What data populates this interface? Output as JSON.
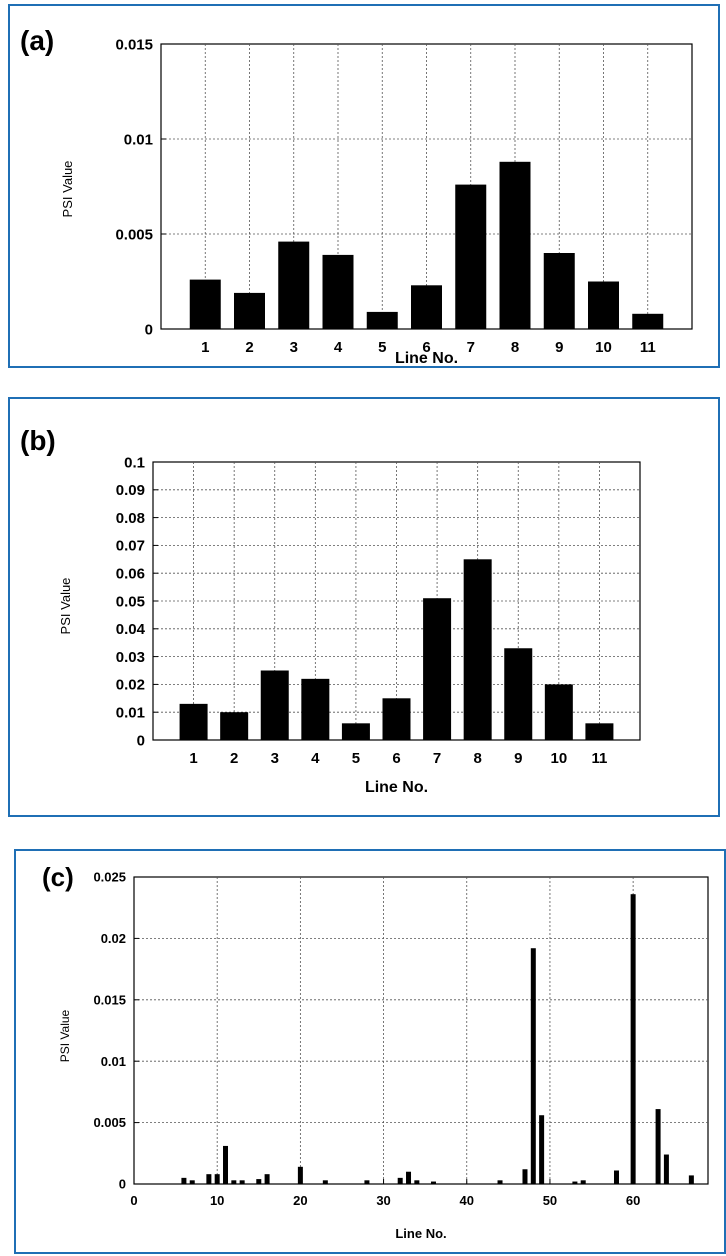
{
  "chart_data": [
    {
      "id": "a",
      "type": "bar",
      "panel_label": "(a)",
      "xlabel": "Line No.",
      "ylabel": "PSI Value",
      "categories": [
        "1",
        "2",
        "3",
        "4",
        "5",
        "6",
        "7",
        "8",
        "9",
        "10",
        "11"
      ],
      "values": [
        0.0026,
        0.0019,
        0.0046,
        0.0039,
        0.0009,
        0.0023,
        0.0076,
        0.0088,
        0.004,
        0.0025,
        0.0008
      ],
      "ylim": [
        0,
        0.015
      ],
      "yticks": [
        "0",
        "0.005",
        "0.01",
        "0.015"
      ],
      "grid": true
    },
    {
      "id": "b",
      "type": "bar",
      "panel_label": "(b)",
      "xlabel": "Line No.",
      "ylabel": "PSI Value",
      "categories": [
        "1",
        "2",
        "3",
        "4",
        "5",
        "6",
        "7",
        "8",
        "9",
        "10",
        "11"
      ],
      "values": [
        0.013,
        0.01,
        0.025,
        0.022,
        0.006,
        0.015,
        0.051,
        0.065,
        0.033,
        0.02,
        0.006
      ],
      "ylim": [
        0,
        0.1
      ],
      "yticks": [
        "0",
        "0.01",
        "0.02",
        "0.03",
        "0.04",
        "0.05",
        "0.06",
        "0.07",
        "0.08",
        "0.09",
        "0.1"
      ],
      "grid": true
    },
    {
      "id": "c",
      "type": "bar",
      "panel_label": "(c)",
      "xlabel": "Line No.",
      "ylabel": "PSI Value",
      "x": [
        6,
        7,
        9,
        10,
        11,
        12,
        13,
        15,
        16,
        20,
        23,
        28,
        32,
        33,
        34,
        36,
        44,
        47,
        48,
        49,
        53,
        54,
        58,
        60,
        63,
        64,
        67
      ],
      "values": [
        0.0005,
        0.0003,
        0.0008,
        0.0008,
        0.0031,
        0.0003,
        0.0003,
        0.0004,
        0.0008,
        0.0014,
        0.0003,
        0.0003,
        0.0005,
        0.001,
        0.0003,
        0.0002,
        0.0003,
        0.0012,
        0.0192,
        0.0056,
        0.0002,
        0.0003,
        0.0011,
        0.0236,
        0.0061,
        0.0024,
        0.0007
      ],
      "xlim": [
        0,
        69
      ],
      "xticks": [
        "0",
        "10",
        "20",
        "30",
        "40",
        "50",
        "60"
      ],
      "ylim": [
        0,
        0.025
      ],
      "yticks": [
        "0",
        "0.005",
        "0.01",
        "0.015",
        "0.02",
        "0.025"
      ],
      "grid": true
    }
  ]
}
